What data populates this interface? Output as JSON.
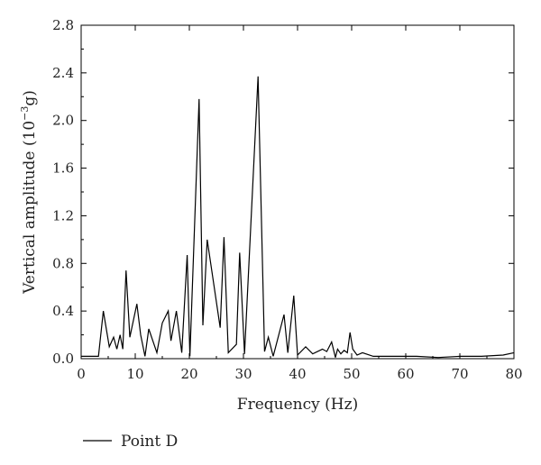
{
  "chart_data": {
    "type": "line",
    "xlabel": "Frequency (Hz)",
    "ylabel_main": "Vertical amplitude (10",
    "ylabel_sup": "−3",
    "ylabel_tail": "g)",
    "xlim": [
      0,
      80
    ],
    "ylim": [
      0,
      2.8
    ],
    "x_ticks": [
      "0",
      "10",
      "20",
      "30",
      "40",
      "50",
      "60",
      "70",
      "80"
    ],
    "y_ticks": [
      "0.0",
      "0.4",
      "0.8",
      "1.2",
      "1.6",
      "2.0",
      "2.4",
      "2.8"
    ],
    "grid": false,
    "legend_position": "bottom-left",
    "series": [
      {
        "name": "Point D",
        "color": "#000000",
        "x": [
          0.0,
          3.2,
          4.1,
          5.2,
          6.0,
          6.6,
          7.2,
          7.7,
          8.3,
          9.0,
          10.3,
          11.0,
          11.8,
          12.5,
          14.0,
          15.0,
          16.1,
          16.6,
          17.6,
          18.6,
          19.6,
          20.1,
          21.8,
          22.5,
          23.3,
          25.7,
          26.4,
          27.2,
          28.7,
          29.3,
          30.2,
          32.7,
          33.9,
          34.6,
          35.5,
          37.5,
          38.2,
          39.3,
          40.0,
          41.5,
          42.8,
          44.6,
          45.4,
          46.3,
          47.0,
          47.4,
          48.0,
          48.6,
          49.2,
          49.7,
          50.2,
          51.0,
          52.0,
          54.0,
          62.0,
          66.0,
          70.0,
          74.0,
          78.0,
          80.0
        ],
        "values": [
          0.02,
          0.02,
          0.4,
          0.1,
          0.18,
          0.08,
          0.2,
          0.08,
          0.74,
          0.18,
          0.46,
          0.2,
          0.02,
          0.25,
          0.05,
          0.3,
          0.4,
          0.15,
          0.4,
          0.05,
          0.87,
          0.02,
          2.18,
          0.28,
          1.0,
          0.26,
          1.02,
          0.05,
          0.12,
          0.89,
          0.04,
          2.37,
          0.06,
          0.18,
          0.02,
          0.37,
          0.05,
          0.53,
          0.03,
          0.1,
          0.04,
          0.08,
          0.06,
          0.14,
          0.01,
          0.08,
          0.04,
          0.07,
          0.05,
          0.22,
          0.08,
          0.03,
          0.05,
          0.02,
          0.02,
          0.01,
          0.02,
          0.02,
          0.03,
          0.05
        ]
      }
    ]
  }
}
